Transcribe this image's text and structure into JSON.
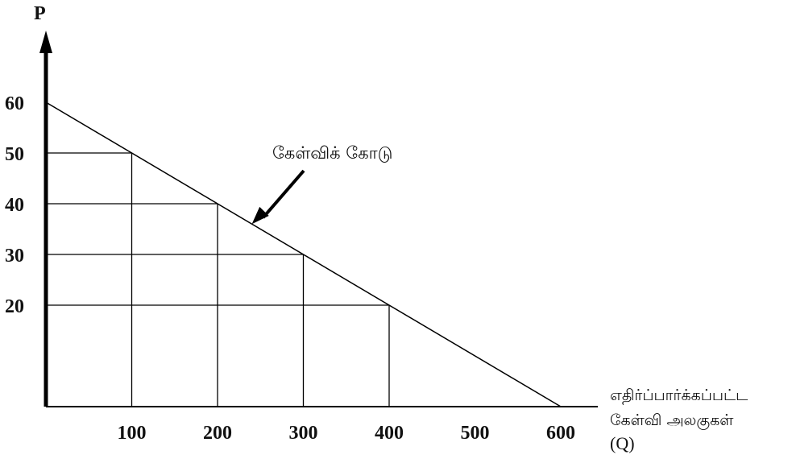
{
  "chart_data": {
    "type": "line",
    "title": "",
    "ylabel": "P",
    "xlabel_lines": [
      "எதிர்ப்பார்க்கப்பட்ட",
      "கேள்வி அலகுகள்",
      "(Q)"
    ],
    "x_ticks": [
      "100",
      "200",
      "300",
      "400",
      "500",
      "600"
    ],
    "y_ticks": [
      "20",
      "30",
      "40",
      "50",
      "60"
    ],
    "xlim": [
      0,
      600
    ],
    "ylim": [
      0,
      60
    ],
    "grid": false,
    "series": [
      {
        "name": "கேள்விக் கோடு",
        "x": [
          0,
          600
        ],
        "y": [
          60,
          0
        ]
      }
    ],
    "reference_points": [
      {
        "x": 100,
        "y": 50
      },
      {
        "x": 200,
        "y": 40
      },
      {
        "x": 300,
        "y": 30
      },
      {
        "x": 400,
        "y": 20
      }
    ],
    "annotation": {
      "text": "கேள்விக் கோடு",
      "arrow_to": {
        "x": 240,
        "y": 36
      }
    },
    "colors": {
      "line": "#000000",
      "text": "#111111"
    }
  }
}
